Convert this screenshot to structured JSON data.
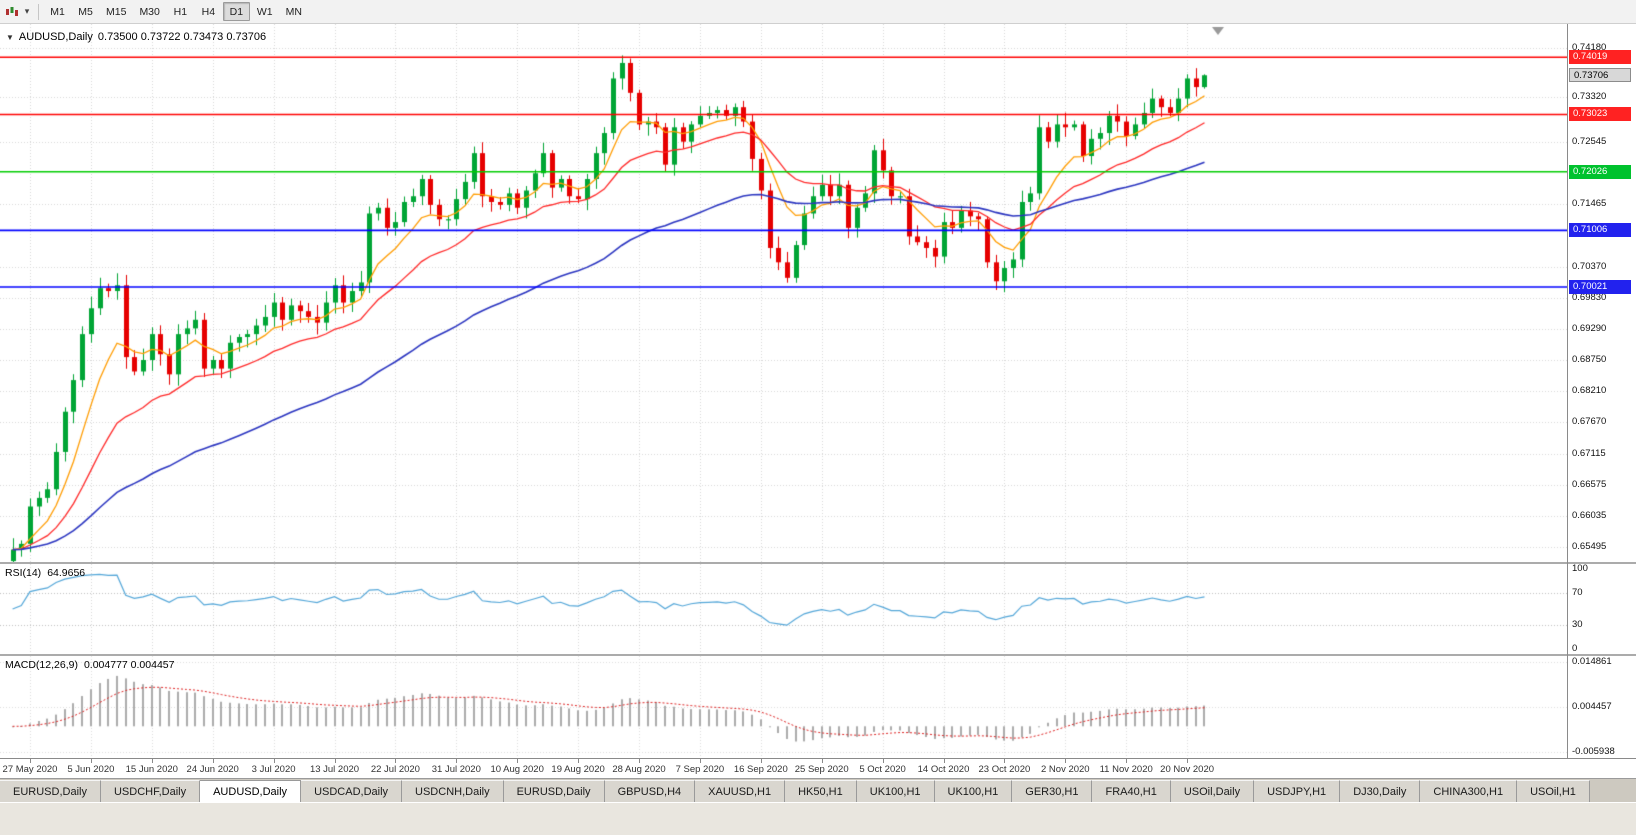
{
  "toolbar": {
    "timeframes": [
      "M1",
      "M5",
      "M15",
      "M30",
      "H1",
      "H4",
      "D1",
      "W1",
      "MN"
    ],
    "active_timeframe": "D1",
    "dropdown_glyph": "▾"
  },
  "chart_header": {
    "marker": "▼",
    "symbol": "AUDUSD,Daily",
    "ohlc": "0.73500 0.73722 0.73473 0.73706"
  },
  "rsi_panel": {
    "label": "RSI(14)",
    "value": "64.9656",
    "line_color": "#53a6d8",
    "levels": [
      70,
      30
    ],
    "axis": [
      {
        "text": "100",
        "value": 100
      },
      {
        "text": "70",
        "value": 70
      },
      {
        "text": "30",
        "value": 30
      },
      {
        "text": "0",
        "value": 0
      }
    ]
  },
  "macd_panel": {
    "label": "MACD(12,26,9)",
    "values": "0.004777 0.004457",
    "hist_color": "#ababab",
    "signal_color": "#dd2222",
    "axis": [
      {
        "text": "0.014861",
        "value": 0.014861
      },
      {
        "text": "0.004457",
        "value": 0.004457
      },
      {
        "text": "-0.005938",
        "value": -0.005938
      }
    ]
  },
  "tabs": {
    "active_index": 2,
    "items": [
      "EURUSD,Daily",
      "USDCHF,Daily",
      "AUDUSD,Daily",
      "USDCAD,Daily",
      "USDCNH,Daily",
      "EURUSD,Daily",
      "GBPUSD,H4",
      "XAUUSD,H1",
      "HK50,H1",
      "UK100,H1",
      "UK100,H1",
      "GER30,H1",
      "FRA40,H1",
      "USOil,Daily",
      "USDJPY,H1",
      "DJ30,Daily",
      "CHINA300,H1",
      "USOil,H1"
    ]
  },
  "chart_data": {
    "type": "candlestick",
    "symbol": "AUDUSD",
    "timeframe": "Daily",
    "current_ohlc": {
      "open": "0.73500",
      "high": "0.73722",
      "low": "0.73473",
      "close": "0.73706"
    },
    "ylim": [
      0.65234,
      0.74598
    ],
    "x_labels": [
      "27 May 2020",
      "5 Jun 2020",
      "15 Jun 2020",
      "24 Jun 2020",
      "3 Jul 2020",
      "13 Jul 2020",
      "22 Jul 2020",
      "31 Jul 2020",
      "10 Aug 2020",
      "19 Aug 2020",
      "28 Aug 2020",
      "7 Sep 2020",
      "16 Sep 2020",
      "25 Sep 2020",
      "5 Oct 2020",
      "14 Oct 2020",
      "23 Oct 2020",
      "2 Nov 2020",
      "11 Nov 2020",
      "20 Nov 2020"
    ],
    "y_axis_labels": [
      {
        "text": "0.74180",
        "value": 0.7418
      },
      {
        "text": "0.73320",
        "value": 0.7332
      },
      {
        "text": "0.72545",
        "value": 0.72545
      },
      {
        "text": "0.71465",
        "value": 0.71465
      },
      {
        "text": "0.70370",
        "value": 0.7037
      },
      {
        "text": "0.69830",
        "value": 0.6983
      },
      {
        "text": "0.69290",
        "value": 0.6929
      },
      {
        "text": "0.68750",
        "value": 0.6875
      },
      {
        "text": "0.68210",
        "value": 0.6821
      },
      {
        "text": "0.67670",
        "value": 0.6767
      },
      {
        "text": "0.67115",
        "value": 0.67115
      },
      {
        "text": "0.66575",
        "value": 0.66575
      },
      {
        "text": "0.66035",
        "value": 0.66035
      },
      {
        "text": "0.65495",
        "value": 0.65495
      }
    ],
    "price_badges": [
      {
        "text": "0.74019",
        "value": 0.74019,
        "bg": "#ff2222",
        "fg": "#ffffff"
      },
      {
        "text": "0.73706",
        "value": 0.73706,
        "bg": "#d8d8d8",
        "fg": "#000000",
        "current": true
      },
      {
        "text": "0.73023",
        "value": 0.73023,
        "bg": "#ff2222",
        "fg": "#ffffff"
      },
      {
        "text": "0.72026",
        "value": 0.72026,
        "bg": "#00c22e",
        "fg": "#ffffff"
      },
      {
        "text": "0.71006",
        "value": 0.71006,
        "bg": "#2222ee",
        "fg": "#ffffff"
      },
      {
        "text": "0.70021",
        "value": 0.70021,
        "bg": "#2222ee",
        "fg": "#ffffff"
      }
    ],
    "h_levels": [
      {
        "price": 0.74019,
        "color": "#ff0000"
      },
      {
        "price": 0.73023,
        "color": "#ff0000"
      },
      {
        "price": 0.72026,
        "color": "#00cc00"
      },
      {
        "price": 0.71006,
        "color": "#0000ff"
      },
      {
        "price": 0.70021,
        "color": "#0000ff"
      }
    ],
    "colors": {
      "bull": "#00a535",
      "bear": "#e60000"
    },
    "moving_averages": [
      {
        "period": 8,
        "color": "#ff9c00"
      },
      {
        "period": 20,
        "color": "#ff2828"
      },
      {
        "period": 55,
        "color": "#2b35c0"
      }
    ],
    "indicators": {
      "rsi": {
        "period": 14,
        "last": 64.9656
      },
      "macd": {
        "fast": 12,
        "slow": 26,
        "signal": 9,
        "last": [
          0.004777,
          0.004457
        ]
      }
    },
    "closes": [
      0.6545,
      0.6555,
      0.662,
      0.6635,
      0.665,
      0.6715,
      0.6785,
      0.684,
      0.692,
      0.6965,
      0.7,
      0.6995,
      0.7005,
      0.688,
      0.6855,
      0.6875,
      0.692,
      0.6885,
      0.685,
      0.692,
      0.693,
      0.6945,
      0.686,
      0.6875,
      0.686,
      0.6905,
      0.6915,
      0.692,
      0.6935,
      0.695,
      0.6975,
      0.6945,
      0.697,
      0.696,
      0.695,
      0.694,
      0.6975,
      0.7005,
      0.6975,
      0.6995,
      0.701,
      0.713,
      0.714,
      0.7105,
      0.7115,
      0.715,
      0.716,
      0.719,
      0.7145,
      0.712,
      0.712,
      0.7155,
      0.7185,
      0.7235,
      0.716,
      0.715,
      0.7145,
      0.7165,
      0.714,
      0.717,
      0.72,
      0.7235,
      0.7175,
      0.719,
      0.716,
      0.7155,
      0.719,
      0.7235,
      0.727,
      0.7365,
      0.7392,
      0.734,
      0.7285,
      0.729,
      0.728,
      0.7215,
      0.728,
      0.7255,
      0.7285,
      0.73,
      0.7305,
      0.731,
      0.73,
      0.7315,
      0.729,
      0.7225,
      0.717,
      0.707,
      0.7045,
      0.7018,
      0.7075,
      0.713,
      0.716,
      0.718,
      0.716,
      0.718,
      0.7105,
      0.714,
      0.7165,
      0.724,
      0.7205,
      0.716,
      0.716,
      0.709,
      0.708,
      0.707,
      0.7055,
      0.7115,
      0.7105,
      0.7135,
      0.7125,
      0.712,
      0.7045,
      0.7012,
      0.7035,
      0.705,
      0.715,
      0.7165,
      0.728,
      0.7255,
      0.7285,
      0.728,
      0.7285,
      0.723,
      0.726,
      0.727,
      0.73,
      0.729,
      0.7265,
      0.7285,
      0.7305,
      0.733,
      0.7315,
      0.7305,
      0.733,
      0.7365,
      0.735,
      0.73706
    ],
    "last_candle_ohlc": [
      0.735,
      0.73722,
      0.73473,
      0.73706
    ]
  }
}
